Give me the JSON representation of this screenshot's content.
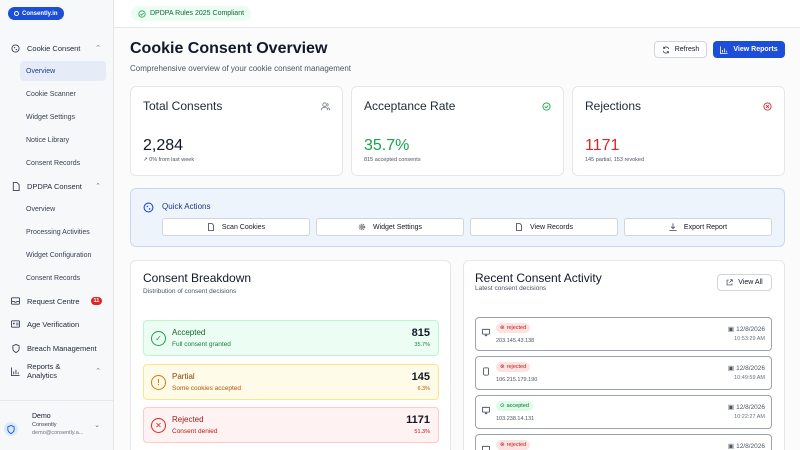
{
  "brand": {
    "logo_text": "Consently.in"
  },
  "topbar": {
    "compliance_badge": "DPDPA Rules 2025 Compliant"
  },
  "sidebar": {
    "cookie_consent": {
      "label": "Cookie Consent",
      "items": [
        "Overview",
        "Cookie Scanner",
        "Widget Settings",
        "Notice Library",
        "Consent Records"
      ]
    },
    "dpdpa_consent": {
      "label": "DPDPA Consent",
      "items": [
        "Overview",
        "Processing Activities",
        "Widget Configuration",
        "Consent Records"
      ]
    },
    "request_centre": {
      "label": "Request Centre",
      "badge": "11"
    },
    "age_verification": {
      "label": "Age Verification"
    },
    "breach_management": {
      "label": "Breach Management"
    },
    "reports": {
      "label": "Reports & Analytics"
    },
    "user": {
      "name": "Demo",
      "org": "Consently",
      "email": "demo@consently.a..."
    }
  },
  "header": {
    "title": "Cookie Consent Overview",
    "subtitle": "Comprehensive overview of your cookie consent management",
    "refresh_label": "Refresh",
    "view_reports_label": "View Reports"
  },
  "stats": {
    "total": {
      "label": "Total Consents",
      "value": "2,284",
      "sub": "0% from last week"
    },
    "acceptance": {
      "label": "Acceptance Rate",
      "value": "35.7%",
      "sub": "815 accepted consents"
    },
    "rejections": {
      "label": "Rejections",
      "value": "1171",
      "sub": "145 partial, 153 revoked"
    }
  },
  "quick_actions": {
    "title": "Quick Actions",
    "buttons": [
      "Scan Cookies",
      "Widget Settings",
      "View Records",
      "Export Report"
    ]
  },
  "breakdown": {
    "title": "Consent Breakdown",
    "subtitle": "Distribution of consent decisions",
    "rows": [
      {
        "label": "Accepted",
        "desc": "Full consent granted",
        "value": "815",
        "pct": "35.7%"
      },
      {
        "label": "Partial",
        "desc": "Some cookies accepted",
        "value": "145",
        "pct": "6.3%"
      },
      {
        "label": "Rejected",
        "desc": "Consent denied",
        "value": "1171",
        "pct": "51.3%"
      }
    ]
  },
  "activity": {
    "title": "Recent Consent Activity",
    "subtitle": "Latest consent decisions",
    "view_all_label": "View All",
    "items": [
      {
        "status": "rejected",
        "ip": "203.145.43.138",
        "date": "12/8/2026",
        "time": "10:53:29 AM",
        "device": "desktop"
      },
      {
        "status": "rejected",
        "ip": "106.215.179.190",
        "date": "12/8/2026",
        "time": "10:49:59 AM",
        "device": "mobile"
      },
      {
        "status": "accepted",
        "ip": "103.238.14.131",
        "date": "12/8/2026",
        "time": "10:22:27 AM",
        "device": "desktop"
      },
      {
        "status": "rejected",
        "ip": "",
        "date": "12/8/2026",
        "time": "",
        "device": "desktop"
      }
    ]
  },
  "colors": {
    "primary": "#1d4ed8",
    "success": "#16a34a",
    "warning": "#d97706",
    "danger": "#dc2626"
  }
}
